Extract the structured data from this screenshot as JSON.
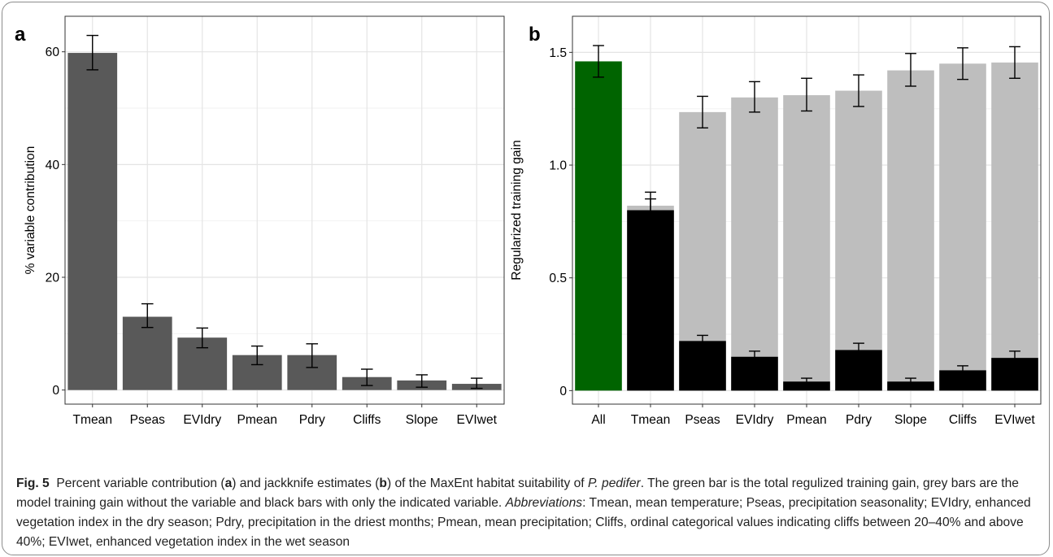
{
  "chart_data": [
    {
      "panel": "a",
      "type": "bar",
      "ylabel": "% variable contribution",
      "xlabel": "",
      "categories": [
        "Tmean",
        "Pseas",
        "EVIdry",
        "Pmean",
        "Pdry",
        "Cliffs",
        "Slope",
        "EVIwet"
      ],
      "values": [
        59.8,
        13.0,
        9.3,
        6.2,
        6.2,
        2.3,
        1.7,
        1.1
      ],
      "error_low": [
        56.8,
        11.1,
        7.5,
        4.5,
        4.0,
        0.8,
        0.5,
        0.3
      ],
      "error_high": [
        62.9,
        15.3,
        11.0,
        7.8,
        8.2,
        3.7,
        2.7,
        2.1
      ],
      "ylim": [
        -2.5,
        66.3
      ],
      "yticks": [
        "0",
        "20",
        "40",
        "60"
      ],
      "grid": true,
      "bar_color": "#595959"
    },
    {
      "panel": "b",
      "type": "bar",
      "ylabel": "Regularized training gain",
      "xlabel": "",
      "categories": [
        "All",
        "Tmean",
        "Pseas",
        "EVIdry",
        "Pmean",
        "Pdry",
        "Slope",
        "Cliffs",
        "EVIwet"
      ],
      "ylim": [
        -0.06,
        1.66
      ],
      "yticks": [
        "0",
        "0.5",
        "1.0",
        "1.5"
      ],
      "grid": true,
      "series": [
        {
          "values": [
            1.46,
            null,
            null,
            null,
            null,
            null,
            null,
            null,
            null
          ],
          "error_low": [
            1.39,
            null,
            null,
            null,
            null,
            null,
            null,
            null,
            null
          ],
          "error_high": [
            1.53,
            null,
            null,
            null,
            null,
            null,
            null,
            null,
            null
          ],
          "color": "#006400"
        },
        {
          "values": [
            null,
            0.82,
            1.235,
            1.3,
            1.31,
            1.33,
            1.42,
            1.45,
            1.455
          ],
          "error_low": [
            null,
            0.79,
            1.165,
            1.235,
            1.24,
            1.26,
            1.35,
            1.38,
            1.385
          ],
          "error_high": [
            null,
            0.85,
            1.305,
            1.37,
            1.385,
            1.4,
            1.495,
            1.52,
            1.525
          ],
          "color": "#bebebe"
        },
        {
          "values": [
            null,
            0.8,
            0.22,
            0.15,
            0.04,
            0.18,
            0.04,
            0.09,
            0.145
          ],
          "error_low": [
            null,
            0.725,
            0.195,
            0.125,
            0.025,
            0.155,
            0.025,
            0.07,
            0.11
          ],
          "error_high": [
            null,
            0.88,
            0.245,
            0.175,
            0.055,
            0.21,
            0.055,
            0.11,
            0.175
          ],
          "color": "#000000"
        }
      ]
    }
  ],
  "caption": {
    "fig_label": "Fig. 5",
    "t1": "Percent variable contribution (",
    "a": "a",
    "t2": ") and jackknife estimates (",
    "b": "b",
    "t3": ") of the MaxEnt habitat suitability of ",
    "species": "P. pedifer",
    "t4": ". The green bar is the total regulized training gain, grey bars are the model training gain without the variable and black bars with only the indicated variable. ",
    "abbr_label": "Abbreviations",
    "t5": ": Tmean, mean temperature; Pseas, precipitation seasonality; EVIdry, enhanced vegetation index in the dry season; Pdry, precipitation in the driest months; Pmean, mean precipitation; Cliffs, ordinal categorical values indicating cliffs between 20–40% and above 40%; EVIwet, enhanced vegetation index in the wet season"
  }
}
